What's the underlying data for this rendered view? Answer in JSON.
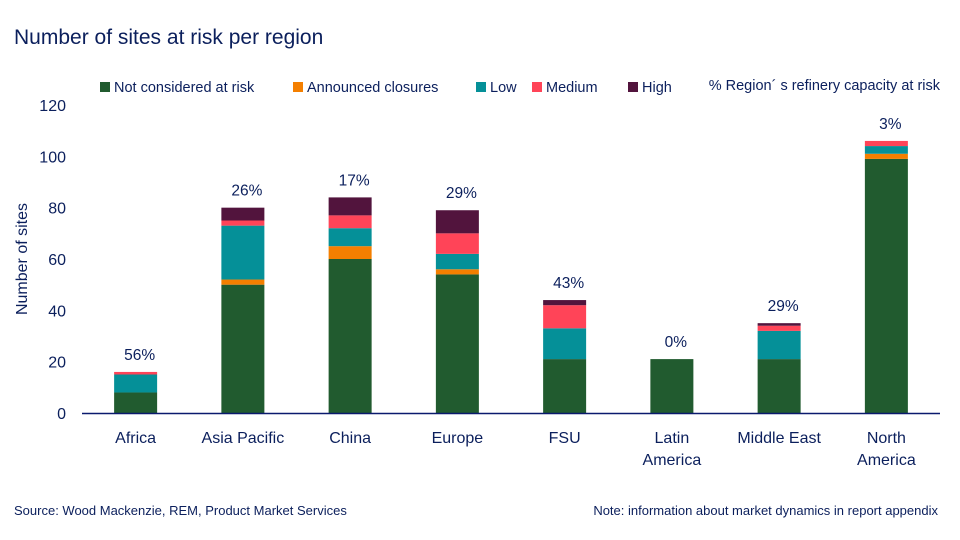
{
  "chart_data": {
    "type": "bar",
    "stacked": true,
    "title": "Number of sites at risk per region",
    "ylabel": "Number of sites",
    "xlabel": "",
    "ylim": [
      0,
      120
    ],
    "yticks": [
      0,
      20,
      40,
      60,
      80,
      100,
      120
    ],
    "grid": false,
    "legend_position": "top",
    "annotation_label": "% Region´ s refinery capacity at risk",
    "categories": [
      [
        "Africa"
      ],
      [
        "Asia Pacific"
      ],
      [
        "China"
      ],
      [
        "Europe"
      ],
      [
        "FSU"
      ],
      [
        "Latin",
        "America"
      ],
      [
        "Middle East"
      ],
      [
        "North",
        "America"
      ]
    ],
    "capacity_at_risk_labels": [
      "56%",
      "26%",
      "17%",
      "29%",
      "43%",
      "0%",
      "29%",
      "3%"
    ],
    "series": [
      {
        "name": "Not considered at risk",
        "color": "#215b2f",
        "values": [
          8,
          50,
          60,
          54,
          21,
          21,
          21,
          99
        ]
      },
      {
        "name": "Announced closures",
        "color": "#f47f00",
        "values": [
          0,
          2,
          5,
          2,
          0,
          0,
          0,
          2
        ]
      },
      {
        "name": "Low",
        "color": "#059098",
        "values": [
          7,
          21,
          7,
          6,
          12,
          0,
          11,
          3
        ]
      },
      {
        "name": "Medium",
        "color": "#ff4458",
        "values": [
          1,
          2,
          5,
          8,
          9,
          0,
          2,
          2
        ]
      },
      {
        "name": "High",
        "color": "#52143d",
        "values": [
          0,
          5,
          7,
          9,
          2,
          0,
          1,
          0
        ]
      }
    ]
  },
  "footer": {
    "source": "Source: Wood Mackenzie, REM, Product Market Services",
    "note": "Note: information about market dynamics in report appendix"
  }
}
